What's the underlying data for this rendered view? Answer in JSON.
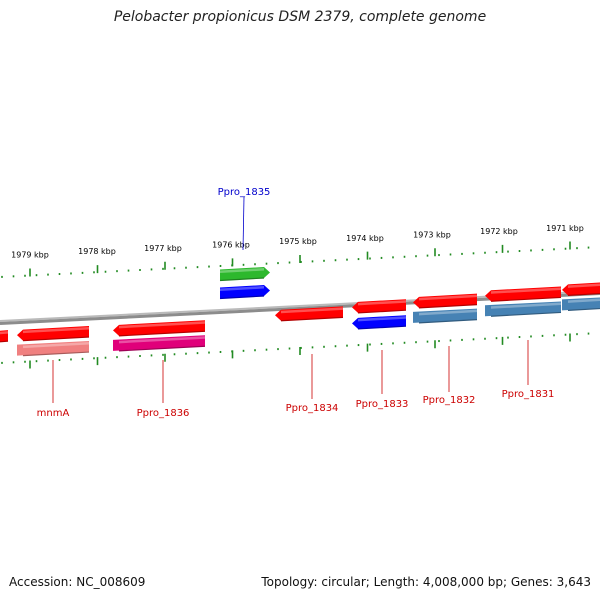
{
  "title": "Pelobacter propionicus DSM 2379, complete genome",
  "footer": {
    "accession": "Accession: NC_008609",
    "summary": "Topology: circular; Length: 4,008,000 bp; Genes: 3,643"
  },
  "colors": {
    "backbone": "#8c8c8c",
    "ticks": "#228b22",
    "label_forward": "#0000cc",
    "label_reverse": "#cc0000"
  },
  "scale_ticks": [
    {
      "label": "1979 kbp"
    },
    {
      "label": "1978 kbp"
    },
    {
      "label": "1977 kbp"
    },
    {
      "label": "1976 kbp"
    },
    {
      "label": "1975 kbp"
    },
    {
      "label": "1974 kbp"
    },
    {
      "label": "1973 kbp"
    },
    {
      "label": "1972 kbp"
    },
    {
      "label": "1971 kbp"
    }
  ],
  "gene_labels": [
    {
      "label": "Ppro_1835",
      "strand": "forward"
    },
    {
      "label": "mnmA",
      "strand": "reverse"
    },
    {
      "label": "Ppro_1836",
      "strand": "reverse"
    },
    {
      "label": "Ppro_1834",
      "strand": "reverse"
    },
    {
      "label": "Ppro_1833",
      "strand": "reverse"
    },
    {
      "label": "Ppro_1832",
      "strand": "reverse"
    },
    {
      "label": "Ppro_1831",
      "strand": "reverse"
    }
  ],
  "features": [
    {
      "type": "gene",
      "strand": "reverse",
      "color": "#ff0000"
    },
    {
      "type": "gene",
      "strand": "reverse",
      "color": "#ff0000"
    },
    {
      "type": "tRNA",
      "strand": "reverse",
      "color": "#f08080"
    },
    {
      "type": "gene",
      "strand": "reverse",
      "color": "#ff0000"
    },
    {
      "type": "misc",
      "strand": "reverse",
      "color": "#e0007a"
    },
    {
      "type": "gene",
      "strand": "forward",
      "color": "#2db82d"
    },
    {
      "type": "CDS",
      "strand": "forward",
      "color": "#0000ff"
    },
    {
      "type": "gene",
      "strand": "reverse",
      "color": "#ff0000"
    },
    {
      "type": "gene",
      "strand": "reverse",
      "color": "#ff0000"
    },
    {
      "type": "CDS",
      "strand": "reverse",
      "color": "#0000ff"
    },
    {
      "type": "gene",
      "strand": "reverse",
      "color": "#ff0000"
    },
    {
      "type": "CDS",
      "strand": "reverse",
      "color": "#4682b4"
    },
    {
      "type": "gene",
      "strand": "reverse",
      "color": "#ff0000"
    },
    {
      "type": "CDS",
      "strand": "reverse",
      "color": "#4682b4"
    },
    {
      "type": "gene",
      "strand": "reverse",
      "color": "#ff0000"
    },
    {
      "type": "CDS",
      "strand": "reverse",
      "color": "#4682b4"
    }
  ]
}
